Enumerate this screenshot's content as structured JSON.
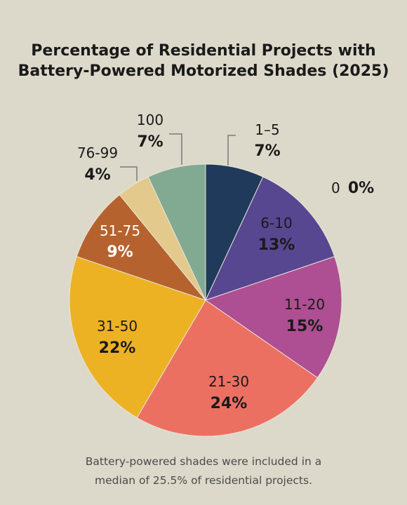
{
  "chart_data": {
    "type": "pie",
    "title_lines": [
      "Percentage of Residential Projects with",
      "Battery-Powered Motorized Shades (2025)"
    ],
    "slices": [
      {
        "label": "1–5",
        "value": 7,
        "display": "7%",
        "color": "#1f3a5a"
      },
      {
        "label": "6-10",
        "value": 13,
        "display": "13%",
        "color": "#574690"
      },
      {
        "label": "11-20",
        "value": 15,
        "display": "15%",
        "color": "#ad4f92"
      },
      {
        "label": "21-30",
        "value": 24,
        "display": "24%",
        "color": "#ec7062"
      },
      {
        "label": "31-50",
        "value": 22,
        "display": "22%",
        "color": "#ecb224"
      },
      {
        "label": "51-75",
        "value": 9,
        "display": "9%",
        "color": "#b6622f"
      },
      {
        "label": "76-99",
        "value": 4,
        "display": "4%",
        "color": "#e3c98b"
      },
      {
        "label": "100",
        "value": 7,
        "display": "7%",
        "color": "#82aa93"
      }
    ],
    "zero_slice": {
      "label": "0",
      "display": "0%"
    },
    "note_lines": [
      "Battery-powered shades were included in a",
      "median of 25.5% of residential projects."
    ]
  }
}
